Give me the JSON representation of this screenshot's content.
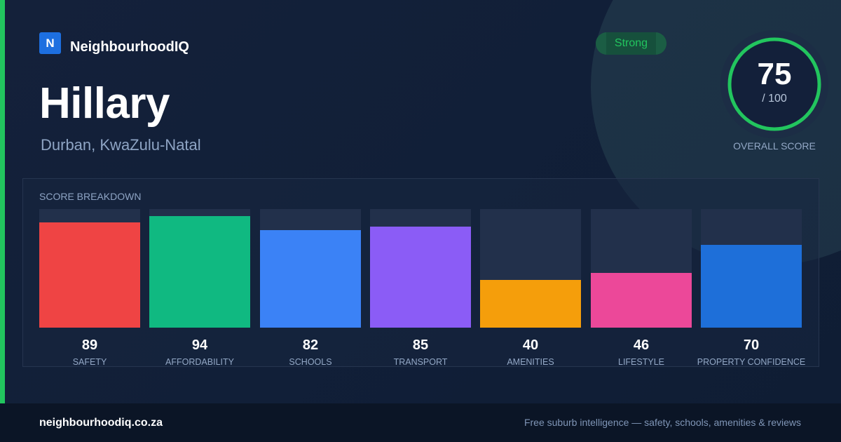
{
  "brand": {
    "logo_letter": "N",
    "name": "NeighbourhoodIQ"
  },
  "suburb": {
    "name": "Hillary",
    "location": "Durban, KwaZulu-Natal"
  },
  "rating": {
    "badge": "Strong",
    "score": "75",
    "max": "/ 100",
    "score_fraction": 0.75,
    "caption": "OVERALL SCORE"
  },
  "breakdown": {
    "title": "SCORE BREAKDOWN",
    "items": [
      {
        "label": "SAFETY",
        "value": "89",
        "score": 89,
        "color": "#ef4444"
      },
      {
        "label": "AFFORDABILITY",
        "value": "94",
        "score": 94,
        "color": "#10b981"
      },
      {
        "label": "SCHOOLS",
        "value": "82",
        "score": 82,
        "color": "#3b82f6"
      },
      {
        "label": "TRANSPORT",
        "value": "85",
        "score": 85,
        "color": "#8b5cf6"
      },
      {
        "label": "AMENITIES",
        "value": "40",
        "score": 40,
        "color": "#f59e0b"
      },
      {
        "label": "LIFESTYLE",
        "value": "46",
        "score": 46,
        "color": "#ec4899"
      },
      {
        "label": "PROPERTY CONFIDENCE",
        "value": "70",
        "score": 70,
        "color": "#1e6fd9"
      }
    ]
  },
  "footer": {
    "domain": "neighbourhoodiq.co.za",
    "tagline": "Free suburb intelligence — safety, schools, amenities & reviews"
  },
  "colors": {
    "accent": "#22c55e",
    "brand_blue": "#1d6fe0",
    "background": "#111f38"
  }
}
